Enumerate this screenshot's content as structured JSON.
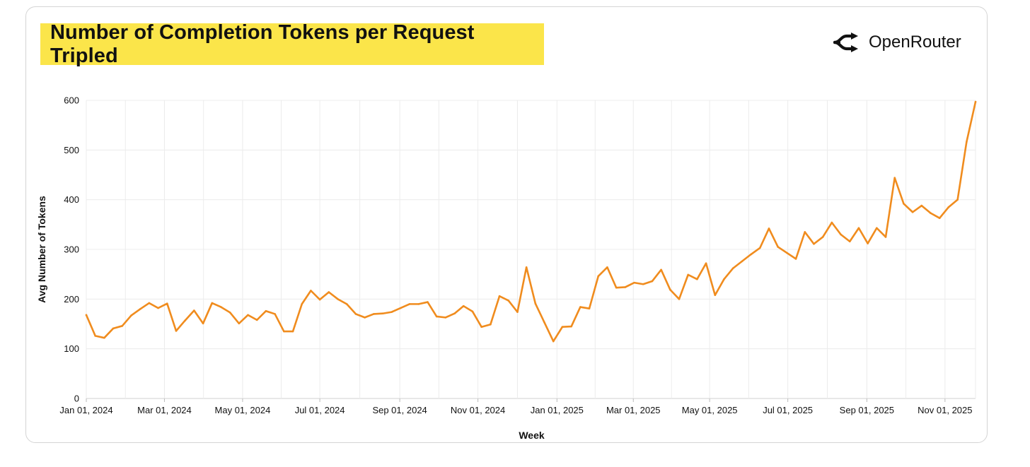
{
  "header": {
    "title": "Number of Completion Tokens per Request Tripled",
    "brand_name": "OpenRouter",
    "brand_icon": "openrouter-logo-icon",
    "title_bg_color": "#fbe54a"
  },
  "chart_data": {
    "type": "line",
    "title": "Number of Completion Tokens per Request Tripled",
    "xlabel": "Week",
    "ylabel": "Avg Number of Tokens",
    "ylim": [
      0,
      600
    ],
    "yticks": [
      0,
      100,
      200,
      300,
      400,
      500,
      600
    ],
    "xtick_labels": [
      "Jan 01, 2024",
      "Mar 01, 2024",
      "May 01, 2024",
      "Jul 01, 2024",
      "Sep 01, 2024",
      "Nov 01, 2024",
      "Jan 01, 2025",
      "Mar 01, 2025",
      "May 01, 2025",
      "Jul 01, 2025",
      "Sep 01, 2025",
      "Nov 01, 2025"
    ],
    "xtick_weeks": [
      0,
      8.7,
      17.4,
      26,
      34.9,
      43.6,
      52.4,
      60.9,
      69.4,
      78.1,
      86.9,
      95.6
    ],
    "grid": true,
    "line_color": "#f08c1e",
    "series": [
      {
        "name": "Avg Number of Tokens",
        "values": [
          168,
          126,
          122,
          141,
          146,
          167,
          180,
          192,
          182,
          191,
          136,
          157,
          177,
          151,
          192,
          184,
          173,
          151,
          168,
          158,
          176,
          170,
          135,
          135,
          190,
          217,
          199,
          214,
          200,
          190,
          170,
          163,
          170,
          171,
          174,
          182,
          190,
          190,
          194,
          165,
          163,
          171,
          186,
          175,
          144,
          149,
          206,
          197,
          174,
          264,
          191,
          153,
          115,
          144,
          145,
          184,
          181,
          246,
          264,
          223,
          224,
          233,
          230,
          236,
          259,
          219,
          200,
          249,
          240,
          272,
          208,
          240,
          262,
          276,
          290,
          303,
          342,
          305,
          293,
          281,
          335,
          311,
          325,
          354,
          330,
          316,
          343,
          312,
          343,
          325,
          444,
          392,
          375,
          388,
          373,
          363,
          385,
          400,
          516,
          597
        ]
      }
    ]
  }
}
